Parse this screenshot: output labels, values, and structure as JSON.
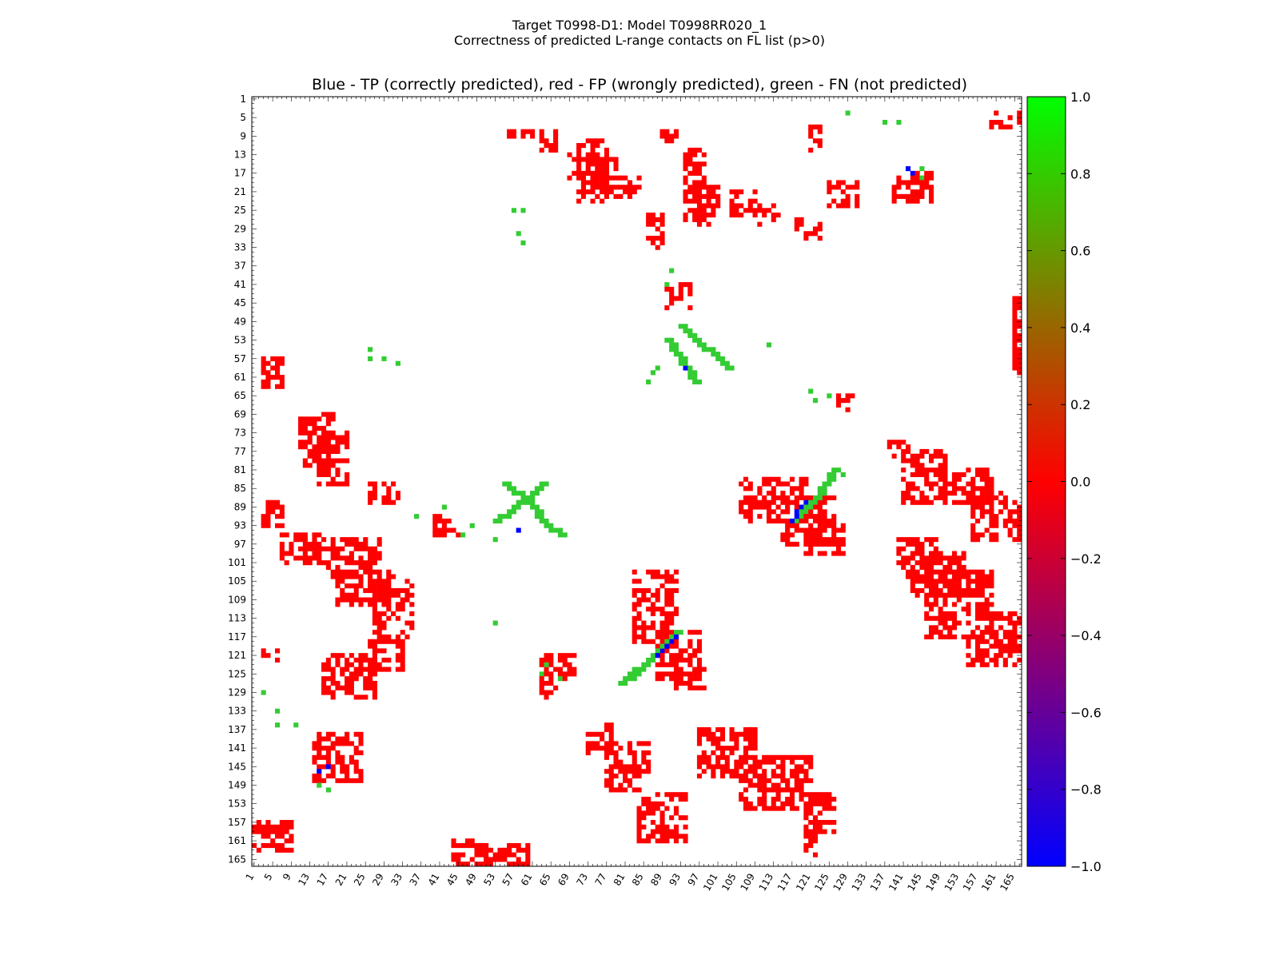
{
  "chart_data": {
    "type": "heatmap",
    "title_line1": "Target T0998-D1: Model T0998RR020_1",
    "title_line2": "Correctness of predicted L-range contacts on FL list (p>0)",
    "subtitle": "Blue - TP (correctly predicted), red - FP (wrongly predicted), green - FN (not predicted)",
    "xlabel": "",
    "ylabel": "",
    "xlim": [
      1,
      166
    ],
    "ylim": [
      1,
      166
    ],
    "x_ticks": [
      "1",
      "5",
      "9",
      "13",
      "17",
      "21",
      "25",
      "29",
      "33",
      "37",
      "41",
      "45",
      "49",
      "53",
      "57",
      "61",
      "65",
      "69",
      "73",
      "77",
      "81",
      "85",
      "89",
      "93",
      "97",
      "101",
      "105",
      "109",
      "113",
      "117",
      "121",
      "125",
      "129",
      "133",
      "137",
      "141",
      "145",
      "149",
      "153",
      "157",
      "161",
      "165"
    ],
    "y_ticks": [
      "1",
      "5",
      "9",
      "13",
      "17",
      "21",
      "25",
      "29",
      "33",
      "37",
      "41",
      "45",
      "49",
      "53",
      "57",
      "61",
      "65",
      "69",
      "73",
      "77",
      "81",
      "85",
      "89",
      "93",
      "97",
      "101",
      "105",
      "109",
      "113",
      "117",
      "121",
      "125",
      "129",
      "133",
      "137",
      "141",
      "145",
      "149",
      "153",
      "157",
      "161",
      "165"
    ],
    "colorbar": {
      "min": -1.0,
      "max": 1.0,
      "ticks": [
        "1.0",
        "0.8",
        "0.6",
        "0.4",
        "0.2",
        "0.0",
        "−0.2",
        "−0.4",
        "−0.6",
        "−0.8",
        "−1.0"
      ],
      "colors": {
        "top": "#00ff00",
        "middle": "#ff0000",
        "bottom": "#0000ff"
      }
    },
    "category_colors": {
      "TP": "#0000ff",
      "FP": "#ff0000",
      "FN": "#33cc33"
    },
    "fp_regions": [
      [
        4,
        7,
        160,
        166
      ],
      [
        8,
        9,
        56,
        61
      ],
      [
        8,
        12,
        63,
        66
      ],
      [
        8,
        10,
        89,
        92
      ],
      [
        10,
        13,
        71,
        77
      ],
      [
        13,
        18,
        69,
        77
      ],
      [
        14,
        23,
        71,
        79
      ],
      [
        18,
        22,
        77,
        84
      ],
      [
        7,
        12,
        121,
        123
      ],
      [
        19,
        24,
        125,
        131
      ],
      [
        17,
        23,
        139,
        147
      ],
      [
        12,
        27,
        94,
        98
      ],
      [
        20,
        28,
        96,
        101
      ],
      [
        21,
        26,
        104,
        109
      ],
      [
        24,
        28,
        110,
        114
      ],
      [
        27,
        31,
        118,
        123
      ],
      [
        26,
        33,
        86,
        89
      ],
      [
        41,
        46,
        90,
        95
      ],
      [
        44,
        60,
        165,
        166
      ],
      [
        57,
        63,
        3,
        7
      ],
      [
        69,
        80,
        11,
        18
      ],
      [
        73,
        84,
        15,
        21
      ],
      [
        84,
        88,
        26,
        32
      ],
      [
        88,
        93,
        3,
        7
      ],
      [
        95,
        101,
        7,
        16
      ],
      [
        96,
        104,
        17,
        28
      ],
      [
        103,
        110,
        19,
        31
      ],
      [
        105,
        118,
        27,
        35
      ],
      [
        118,
        124,
        26,
        33
      ],
      [
        121,
        130,
        16,
        27
      ],
      [
        120,
        122,
        3,
        6
      ],
      [
        91,
        95,
        40,
        45
      ],
      [
        138,
        148,
        14,
        24
      ],
      [
        157,
        163,
        1,
        9
      ],
      [
        161,
        167,
        44,
        50
      ],
      [
        162,
        166,
        50,
        60
      ],
      [
        83,
        92,
        106,
        120
      ],
      [
        87,
        97,
        115,
        126
      ],
      [
        93,
        99,
        120,
        128
      ],
      [
        103,
        118,
        83,
        92
      ],
      [
        116,
        126,
        88,
        97
      ],
      [
        124,
        128,
        92,
        98
      ],
      [
        136,
        142,
        73,
        78
      ],
      [
        140,
        150,
        77,
        86
      ],
      [
        151,
        161,
        84,
        94
      ],
      [
        137,
        147,
        97,
        109
      ],
      [
        143,
        154,
        106,
        121
      ],
      [
        151,
        159,
        120,
        126
      ],
      [
        157,
        164,
        120,
        122
      ],
      [
        77,
        88,
        141,
        150
      ],
      [
        81,
        88,
        150,
        160
      ],
      [
        86,
        96,
        156,
        166
      ],
      [
        96,
        104,
        140,
        148
      ],
      [
        99,
        108,
        143,
        154
      ],
      [
        103,
        117,
        146,
        160
      ],
      [
        112,
        123,
        155,
        167
      ],
      [
        65,
        68,
        127,
        130
      ],
      [
        75,
        78,
        138,
        142
      ],
      [
        121,
        130,
        63,
        66
      ],
      [
        121,
        126,
        67,
        70
      ]
    ],
    "fn_points": [
      [
        4,
        129
      ],
      [
        6,
        137
      ],
      [
        6,
        140
      ],
      [
        25,
        57
      ],
      [
        25,
        59
      ],
      [
        30,
        58
      ],
      [
        32,
        59
      ],
      [
        38,
        91
      ],
      [
        41,
        90
      ],
      [
        16,
        145
      ],
      [
        18,
        145
      ],
      [
        55,
        26
      ],
      [
        57,
        26
      ],
      [
        57,
        29
      ],
      [
        58,
        32
      ],
      [
        54,
        98
      ],
      [
        54,
        112
      ],
      [
        59,
        88
      ],
      [
        60,
        87
      ],
      [
        62,
        86
      ],
      [
        64,
        121
      ],
      [
        66,
        122
      ],
      [
        65,
        125
      ],
      [
        82,
        125
      ],
      [
        82,
        128
      ],
      [
        84,
        124
      ],
      [
        86,
        123
      ],
      [
        88,
        121
      ],
      [
        89,
        42
      ],
      [
        91,
        36
      ],
      [
        93,
        48
      ],
      [
        95,
        46
      ],
      [
        96,
        53
      ],
      [
        114,
        53
      ],
      [
        123,
        64
      ],
      [
        125,
        63
      ],
      [
        126,
        67
      ],
      [
        124,
        83
      ],
      [
        125,
        82
      ],
      [
        127,
        81
      ],
      [
        129,
        3
      ],
      [
        133,
        6
      ],
      [
        136,
        6
      ],
      [
        136,
        10
      ],
      [
        149,
        15
      ],
      [
        150,
        17
      ]
    ],
    "fn_lines": [
      [
        [
          50,
          93
        ],
        [
          53,
          96
        ],
        [
          56,
          100
        ],
        [
          59,
          103
        ]
      ],
      [
        [
          62,
          96
        ],
        [
          59,
          94
        ],
        [
          56,
          92
        ],
        [
          53,
          90
        ]
      ],
      [
        [
          84,
          55
        ],
        [
          88,
          60
        ],
        [
          93,
          64
        ],
        [
          95,
          67
        ]
      ],
      [
        [
          92,
          53
        ],
        [
          89,
          57
        ],
        [
          86,
          61
        ],
        [
          84,
          63
        ]
      ],
      [
        [
          116,
          92
        ],
        [
          120,
          88
        ],
        [
          124,
          84
        ],
        [
          127,
          80
        ]
      ],
      [
        [
          92,
          117
        ],
        [
          88,
          121
        ],
        [
          84,
          124
        ],
        [
          81,
          126
        ]
      ]
    ],
    "tp_points": [
      [
        17,
        143
      ],
      [
        16,
        142
      ],
      [
        59,
        94
      ],
      [
        94,
        58
      ],
      [
        88,
        120
      ],
      [
        89,
        119
      ],
      [
        90,
        118
      ],
      [
        91,
        118
      ],
      [
        92,
        117
      ],
      [
        117,
        92
      ],
      [
        118,
        91
      ],
      [
        119,
        90
      ],
      [
        120,
        89
      ],
      [
        121,
        88
      ],
      [
        146,
        15
      ],
      [
        145,
        17
      ]
    ]
  }
}
